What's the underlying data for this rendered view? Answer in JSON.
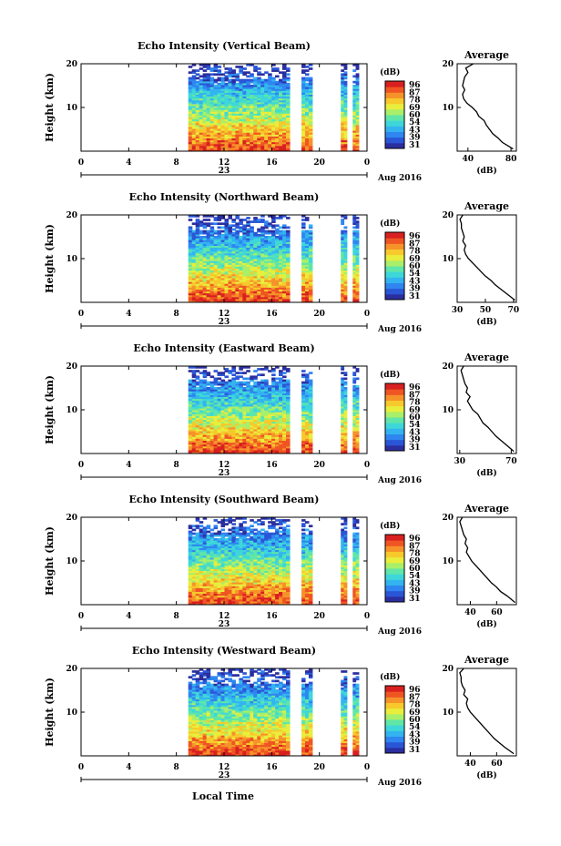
{
  "colorbar": {
    "unit": "(dB)",
    "ticks": [
      "96",
      "87",
      "78",
      "69",
      "60",
      "54",
      "43",
      "39",
      "31"
    ],
    "colors": [
      "#2b2e9e",
      "#2a56d6",
      "#2f86f0",
      "#33b4f0",
      "#3ed7d9",
      "#5fe6a8",
      "#a9ef6a",
      "#e9ee3d",
      "#f7c92c",
      "#f6922a",
      "#ef5523",
      "#d82020"
    ]
  },
  "x_axis": {
    "ticks": [
      "0",
      "4",
      "8",
      "12",
      "16",
      "20",
      "0"
    ],
    "date_marker": "23",
    "month_year": "Aug 2016",
    "label": "Local Time"
  },
  "chart_data": [
    {
      "type": "heatmap",
      "title": "Echo Intensity (Vertical Beam)",
      "ylabel": "Height (km)",
      "yticks": [
        "20",
        "10"
      ],
      "ylim": [
        0,
        20
      ],
      "xlim": [
        0,
        24
      ],
      "data_segments_hours": [
        [
          9,
          17.5
        ],
        [
          18.5,
          19.4
        ],
        [
          21.8,
          22.3
        ],
        [
          22.8,
          23.3
        ]
      ],
      "profile": {
        "title": "Average",
        "xlabel": "(dB)",
        "xticks": [
          "40",
          "80"
        ],
        "xlim": [
          30,
          85
        ],
        "heights": [
          0.5,
          2,
          3,
          4,
          5,
          6,
          7,
          8,
          9,
          10,
          11,
          12,
          13,
          14,
          15,
          16,
          17,
          18,
          19,
          20
        ],
        "values": [
          82,
          72,
          68,
          63,
          60,
          57,
          55,
          50,
          48,
          44,
          39,
          36,
          35,
          37,
          35,
          36,
          37,
          40,
          38,
          45
        ]
      }
    },
    {
      "type": "heatmap",
      "title": "Echo Intensity (Northward Beam)",
      "ylabel": "Height (km)",
      "yticks": [
        "20",
        "10"
      ],
      "ylim": [
        0,
        20
      ],
      "xlim": [
        0,
        24
      ],
      "data_segments_hours": [
        [
          9,
          17.5
        ],
        [
          18.5,
          19.4
        ],
        [
          21.8,
          22.3
        ],
        [
          22.8,
          23.3
        ]
      ],
      "profile": {
        "title": "Average",
        "xlabel": "(dB)",
        "xticks": [
          "30",
          "50",
          "70"
        ],
        "xlim": [
          30,
          72
        ],
        "heights": [
          0.5,
          2,
          3,
          4,
          5,
          6,
          7,
          8,
          9,
          10,
          11,
          12,
          13,
          14,
          15,
          16,
          17,
          18,
          19,
          20
        ],
        "values": [
          71,
          65,
          61,
          57,
          54,
          50,
          47,
          44,
          41,
          38,
          36,
          35,
          36,
          34,
          35,
          34,
          33,
          33,
          32,
          34
        ]
      }
    },
    {
      "type": "heatmap",
      "title": "Echo Intensity (Eastward Beam)",
      "ylabel": "Height (km)",
      "yticks": [
        "20",
        "10"
      ],
      "ylim": [
        0,
        20
      ],
      "xlim": [
        0,
        24
      ],
      "data_segments_hours": [
        [
          9,
          17.5
        ],
        [
          18.5,
          19.4
        ],
        [
          21.8,
          22.3
        ],
        [
          22.8,
          23.3
        ]
      ],
      "profile": {
        "title": "Average",
        "xlabel": "(dB)",
        "xticks": [
          "30",
          "70"
        ],
        "xlim": [
          28,
          74
        ],
        "heights": [
          0.5,
          2,
          3,
          4,
          5,
          6,
          7,
          8,
          9,
          10,
          11,
          12,
          13,
          14,
          15,
          16,
          17,
          18,
          19,
          20
        ],
        "values": [
          72,
          66,
          62,
          58,
          55,
          52,
          48,
          46,
          44,
          40,
          38,
          36,
          38,
          35,
          36,
          34,
          33,
          32,
          31,
          33
        ]
      }
    },
    {
      "type": "heatmap",
      "title": "Echo Intensity (Southward Beam)",
      "ylabel": "Height (km)",
      "yticks": [
        "20",
        "10"
      ],
      "ylim": [
        0,
        20
      ],
      "xlim": [
        0,
        24
      ],
      "data_segments_hours": [
        [
          9,
          17.5
        ],
        [
          18.5,
          19.4
        ],
        [
          21.8,
          22.3
        ],
        [
          22.8,
          23.3
        ]
      ],
      "profile": {
        "title": "Average",
        "xlabel": "(dB)",
        "xticks": [
          "40",
          "60"
        ],
        "xlim": [
          30,
          75
        ],
        "heights": [
          0.5,
          2,
          3,
          4,
          5,
          6,
          7,
          8,
          9,
          10,
          11,
          12,
          13,
          14,
          15,
          16,
          17,
          18,
          19,
          20
        ],
        "values": [
          74,
          68,
          63,
          60,
          56,
          53,
          50,
          47,
          44,
          41,
          39,
          37,
          38,
          36,
          37,
          35,
          34,
          33,
          32,
          34
        ]
      }
    },
    {
      "type": "heatmap",
      "title": "Echo Intensity (Westward Beam)",
      "ylabel": "Height (km)",
      "yticks": [
        "20",
        "10"
      ],
      "ylim": [
        0,
        20
      ],
      "xlim": [
        0,
        24
      ],
      "data_segments_hours": [
        [
          9,
          17.5
        ],
        [
          18.5,
          19.4
        ],
        [
          21.8,
          22.3
        ],
        [
          22.8,
          23.3
        ]
      ],
      "profile": {
        "title": "Average",
        "xlabel": "(dB)",
        "xticks": [
          "40",
          "60"
        ],
        "xlim": [
          30,
          75
        ],
        "heights": [
          0.5,
          2,
          3,
          4,
          5,
          6,
          7,
          8,
          9,
          10,
          11,
          12,
          13,
          14,
          15,
          16,
          17,
          18,
          19,
          20
        ],
        "values": [
          73,
          66,
          62,
          58,
          55,
          52,
          49,
          46,
          43,
          40,
          38,
          37,
          38,
          35,
          36,
          34,
          33,
          33,
          32,
          35
        ]
      }
    }
  ]
}
